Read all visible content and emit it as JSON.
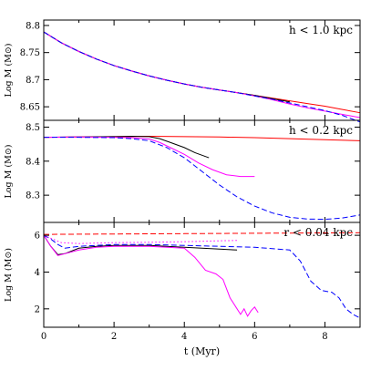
{
  "chart_data": {
    "type": "line",
    "xlabel": "t (Myr)",
    "xlim": [
      0,
      9
    ],
    "x_ticks": [
      0,
      2,
      4,
      6,
      8
    ],
    "colors": {
      "red": "#ff0000",
      "black": "#000000",
      "magenta": "#ff00ff",
      "blue": "#0000ff"
    },
    "panels": [
      {
        "label": "h  <  1.0 kpc",
        "ylabel": "Log M (M⊙)",
        "ylim": [
          8.625,
          8.81
        ],
        "y_ticks": [
          8.65,
          8.7,
          8.75,
          8.8
        ],
        "y_tick_labels": [
          "8.65",
          "8.7",
          "8.75",
          "8.8"
        ],
        "series": [
          {
            "color": "red",
            "dash": "solid",
            "x": [
              0,
              0.5,
              1,
              1.5,
              2,
              2.5,
              3,
              3.5,
              4,
              4.5,
              5,
              5.5,
              6,
              6.5,
              7,
              7.5,
              8,
              8.5,
              9
            ],
            "y": [
              8.788,
              8.768,
              8.752,
              8.738,
              8.726,
              8.716,
              8.707,
              8.699,
              8.692,
              8.686,
              8.681,
              8.676,
              8.671,
              8.666,
              8.661,
              8.656,
              8.651,
              8.645,
              8.639
            ]
          },
          {
            "color": "black",
            "dash": "solid",
            "x": [
              0,
              0.5,
              1,
              1.5,
              2,
              2.5,
              3,
              3.5,
              4,
              4.5,
              5,
              5.5,
              6,
              6.5,
              7
            ],
            "y": [
              8.788,
              8.768,
              8.752,
              8.738,
              8.726,
              8.716,
              8.707,
              8.699,
              8.692,
              8.686,
              8.681,
              8.676,
              8.671,
              8.665,
              8.659
            ]
          },
          {
            "color": "magenta",
            "dash": "solid",
            "x": [
              0,
              0.5,
              1,
              1.5,
              2,
              2.5,
              3,
              3.5,
              4,
              4.5,
              5,
              5.5,
              6,
              6.5,
              7,
              7.5,
              8,
              8.5,
              9
            ],
            "y": [
              8.788,
              8.768,
              8.752,
              8.738,
              8.726,
              8.716,
              8.707,
              8.699,
              8.692,
              8.686,
              8.681,
              8.676,
              8.67,
              8.663,
              8.655,
              8.648,
              8.642,
              8.636,
              8.63
            ]
          },
          {
            "color": "blue",
            "dash": "dashed",
            "x": [
              0,
              0.5,
              1,
              1.5,
              2,
              2.5,
              3,
              3.5,
              4,
              4.5,
              5,
              5.5,
              6,
              6.5,
              7,
              7.5,
              8,
              8.5,
              9
            ],
            "y": [
              8.788,
              8.768,
              8.752,
              8.738,
              8.726,
              8.716,
              8.707,
              8.699,
              8.692,
              8.686,
              8.681,
              8.676,
              8.67,
              8.664,
              8.657,
              8.65,
              8.643,
              8.634,
              8.622
            ]
          }
        ]
      },
      {
        "label": "h  <  0.2 kpc",
        "ylabel": "Log M (M⊙)",
        "ylim": [
          8.22,
          8.52
        ],
        "y_ticks": [
          8.3,
          8.4,
          8.5
        ],
        "y_tick_labels": [
          "8.3",
          "8.4",
          "8.5"
        ],
        "series": [
          {
            "color": "red",
            "dash": "solid",
            "x": [
              0,
              1,
              2,
              3,
              4,
              5,
              6,
              7,
              8,
              9
            ],
            "y": [
              8.47,
              8.471,
              8.472,
              8.473,
              8.472,
              8.471,
              8.469,
              8.466,
              8.463,
              8.46
            ]
          },
          {
            "color": "black",
            "dash": "solid",
            "x": [
              0,
              1,
              2,
              2.5,
              3,
              3.3,
              3.6,
              4,
              4.3,
              4.7
            ],
            "y": [
              8.47,
              8.471,
              8.472,
              8.473,
              8.472,
              8.466,
              8.455,
              8.44,
              8.425,
              8.41
            ]
          },
          {
            "color": "magenta",
            "dash": "solid",
            "x": [
              0,
              1,
              2,
              2.5,
              3,
              3.3,
              3.6,
              4,
              4.4,
              4.8,
              5.2,
              5.6,
              6.0
            ],
            "y": [
              8.47,
              8.471,
              8.47,
              8.469,
              8.465,
              8.455,
              8.44,
              8.42,
              8.395,
              8.375,
              8.36,
              8.355,
              8.355
            ]
          },
          {
            "color": "blue",
            "dash": "dashed",
            "x": [
              0,
              1,
              2,
              2.5,
              3,
              3.5,
              4,
              4.5,
              5,
              5.5,
              6,
              6.5,
              7,
              7.5,
              8,
              8.5,
              9
            ],
            "y": [
              8.47,
              8.47,
              8.469,
              8.466,
              8.46,
              8.44,
              8.41,
              8.37,
              8.33,
              8.295,
              8.268,
              8.248,
              8.235,
              8.23,
              8.229,
              8.233,
              8.242
            ]
          }
        ]
      },
      {
        "label": "r  <  0.04 kpc",
        "ylabel": "Log  M  (M⊙)",
        "ylim": [
          1,
          6.7
        ],
        "y_ticks": [
          2,
          4,
          6
        ],
        "y_tick_labels": [
          "2",
          "4",
          "6"
        ],
        "series": [
          {
            "color": "red",
            "dash": "dashed",
            "x": [
              0,
              1,
              2,
              3,
              4,
              5,
              6,
              7,
              8,
              9
            ],
            "y": [
              6.05,
              6.06,
              6.07,
              6.08,
              6.09,
              6.1,
              6.11,
              6.12,
              6.13,
              6.14
            ]
          },
          {
            "color": "black",
            "dash": "solid",
            "x": [
              0,
              0.2,
              0.4,
              0.6,
              1,
              1.5,
              2,
              3,
              4,
              4.5,
              5,
              5.5
            ],
            "y": [
              6.0,
              5.4,
              4.95,
              5.0,
              5.3,
              5.4,
              5.45,
              5.45,
              5.35,
              5.3,
              5.25,
              5.2
            ]
          },
          {
            "color": "magenta",
            "dash": "solid",
            "x": [
              0,
              0.2,
              0.4,
              0.6,
              1,
              1.5,
              2,
              3,
              4,
              4.3,
              4.6,
              4.9,
              5.1,
              5.3,
              5.5,
              5.6,
              5.7,
              5.8,
              5.9,
              6.0,
              6.1
            ],
            "y": [
              6.0,
              5.4,
              4.9,
              5.0,
              5.2,
              5.35,
              5.4,
              5.4,
              5.3,
              4.8,
              4.1,
              3.9,
              3.6,
              2.6,
              2.0,
              1.7,
              2.0,
              1.6,
              1.9,
              2.1,
              1.8
            ]
          },
          {
            "color": "blue",
            "dash": "dashed",
            "x": [
              0,
              0.2,
              0.4,
              0.6,
              1,
              2,
              3,
              4,
              5,
              6,
              7,
              7.3,
              7.6,
              7.9,
              8.2,
              8.4,
              8.6,
              8.8,
              9
            ],
            "y": [
              6.0,
              5.8,
              5.5,
              5.3,
              5.4,
              5.5,
              5.5,
              5.45,
              5.4,
              5.35,
              5.2,
              4.6,
              3.5,
              3.0,
              2.9,
              2.6,
              2.0,
              1.7,
              1.5
            ]
          },
          {
            "color": "magenta",
            "dash": "dotted",
            "x": [
              0,
              0.5,
              1,
              2,
              3,
              4,
              5,
              5.5
            ],
            "y": [
              6.0,
              5.6,
              5.55,
              5.6,
              5.62,
              5.65,
              5.7,
              5.72
            ]
          }
        ]
      }
    ]
  }
}
